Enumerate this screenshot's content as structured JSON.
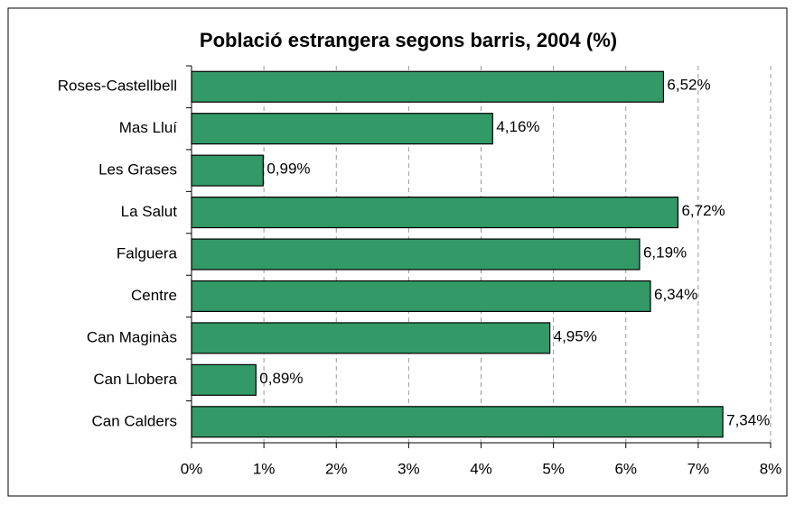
{
  "chart_data": {
    "type": "barh",
    "title": "Població estrangera segons barris, 2004 (%)",
    "categories": [
      "Roses-Castellbell",
      "Mas Lluí",
      "Les Grases",
      "La Salut",
      "Falguera",
      "Centre",
      "Can Maginàs",
      "Can Llobera",
      "Can Calders"
    ],
    "values": [
      6.52,
      4.16,
      0.99,
      6.72,
      6.19,
      6.34,
      4.95,
      0.89,
      7.34
    ],
    "value_labels": [
      "6,52%",
      "4,16%",
      "0,99%",
      "6,72%",
      "6,19%",
      "6,34%",
      "4,95%",
      "0,89%",
      "7,34%"
    ],
    "color": "#339966",
    "xlim": [
      0,
      8
    ],
    "xticks": [
      {
        "value": 0,
        "label": "0%"
      },
      {
        "value": 1,
        "label": "1%"
      },
      {
        "value": 2,
        "label": "2%"
      },
      {
        "value": 3,
        "label": "3%"
      },
      {
        "value": 4,
        "label": "4%"
      },
      {
        "value": 5,
        "label": "5%"
      },
      {
        "value": 6,
        "label": "6%"
      },
      {
        "value": 7,
        "label": "7%"
      },
      {
        "value": 8,
        "label": "8%"
      }
    ],
    "grid": true
  }
}
